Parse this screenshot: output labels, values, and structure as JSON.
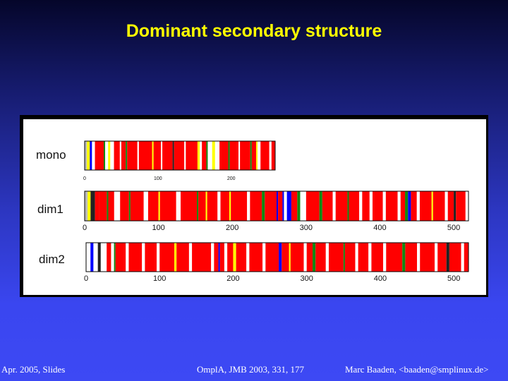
{
  "slide": {
    "title": "Dominant secondary structure",
    "footer_left": "Apr. 2005, Slides",
    "footer_center": "OmplA, JMB 2003, 331, 177",
    "footer_right": "Marc Baaden, <baaden@smplinux.de>"
  },
  "colors": {
    "helix": "#ff0000",
    "strand_yellow": "#ffff00",
    "turn_green": "#118811",
    "blue": "#0000ff",
    "coil": "#ffffff",
    "gray": "#bbbbbb",
    "dark": "#222222"
  },
  "chart_data": [
    {
      "type": "band",
      "name": "mono",
      "label": "mono",
      "axis_range": [
        0,
        260
      ],
      "ticks": [
        0,
        100,
        200
      ],
      "segments": [
        [
          0,
          3,
          "gray"
        ],
        [
          3,
          7,
          "yellow"
        ],
        [
          7,
          10,
          "blue"
        ],
        [
          10,
          14,
          "coil"
        ],
        [
          14,
          26,
          "red"
        ],
        [
          26,
          28,
          "green"
        ],
        [
          28,
          32,
          "coil"
        ],
        [
          32,
          35,
          "yellow"
        ],
        [
          35,
          40,
          "coil"
        ],
        [
          40,
          48,
          "red"
        ],
        [
          48,
          50,
          "coil"
        ],
        [
          50,
          56,
          "red"
        ],
        [
          56,
          58,
          "green"
        ],
        [
          58,
          72,
          "red"
        ],
        [
          72,
          74,
          "coil"
        ],
        [
          74,
          92,
          "red"
        ],
        [
          92,
          94,
          "yellow"
        ],
        [
          94,
          104,
          "red"
        ],
        [
          104,
          106,
          "coil"
        ],
        [
          106,
          120,
          "red"
        ],
        [
          120,
          122,
          "dark"
        ],
        [
          122,
          136,
          "red"
        ],
        [
          136,
          138,
          "coil"
        ],
        [
          138,
          154,
          "red"
        ],
        [
          154,
          157,
          "yellow"
        ],
        [
          157,
          160,
          "coil"
        ],
        [
          160,
          166,
          "red"
        ],
        [
          166,
          168,
          "green"
        ],
        [
          168,
          174,
          "coil"
        ],
        [
          174,
          178,
          "yellow"
        ],
        [
          178,
          184,
          "coil"
        ],
        [
          184,
          196,
          "red"
        ],
        [
          196,
          198,
          "green"
        ],
        [
          198,
          210,
          "red"
        ],
        [
          210,
          212,
          "coil"
        ],
        [
          212,
          226,
          "red"
        ],
        [
          226,
          228,
          "green"
        ],
        [
          228,
          234,
          "red"
        ],
        [
          234,
          236,
          "yellow"
        ],
        [
          236,
          240,
          "coil"
        ],
        [
          240,
          252,
          "red"
        ],
        [
          252,
          255,
          "coil"
        ],
        [
          255,
          260,
          "red"
        ]
      ]
    },
    {
      "type": "band",
      "name": "dim1",
      "label": "dim1",
      "axis_range": [
        0,
        520
      ],
      "ticks": [
        0,
        100,
        200,
        300,
        400,
        500
      ],
      "segments": [
        [
          0,
          4,
          "gray"
        ],
        [
          4,
          8,
          "yellow"
        ],
        [
          8,
          14,
          "dark"
        ],
        [
          14,
          20,
          "red"
        ],
        [
          20,
          30,
          "red"
        ],
        [
          30,
          32,
          "green"
        ],
        [
          32,
          40,
          "red"
        ],
        [
          40,
          48,
          "coil"
        ],
        [
          48,
          60,
          "red"
        ],
        [
          60,
          62,
          "green"
        ],
        [
          62,
          80,
          "red"
        ],
        [
          80,
          86,
          "coil"
        ],
        [
          86,
          100,
          "red"
        ],
        [
          100,
          102,
          "yellow"
        ],
        [
          102,
          124,
          "red"
        ],
        [
          124,
          130,
          "coil"
        ],
        [
          130,
          152,
          "red"
        ],
        [
          152,
          154,
          "green"
        ],
        [
          154,
          164,
          "red"
        ],
        [
          164,
          166,
          "yellow"
        ],
        [
          166,
          180,
          "red"
        ],
        [
          180,
          184,
          "coil"
        ],
        [
          184,
          196,
          "red"
        ],
        [
          196,
          198,
          "yellow"
        ],
        [
          198,
          220,
          "red"
        ],
        [
          220,
          224,
          "coil"
        ],
        [
          224,
          240,
          "red"
        ],
        [
          240,
          244,
          "green"
        ],
        [
          244,
          260,
          "red"
        ],
        [
          260,
          262,
          "blue"
        ],
        [
          262,
          268,
          "red"
        ],
        [
          268,
          270,
          "blue"
        ],
        [
          270,
          274,
          "coil"
        ],
        [
          274,
          280,
          "blue"
        ],
        [
          280,
          288,
          "red"
        ],
        [
          288,
          292,
          "green"
        ],
        [
          292,
          300,
          "coil"
        ],
        [
          300,
          318,
          "red"
        ],
        [
          318,
          322,
          "green"
        ],
        [
          322,
          336,
          "red"
        ],
        [
          336,
          340,
          "coil"
        ],
        [
          340,
          356,
          "red"
        ],
        [
          356,
          358,
          "green"
        ],
        [
          358,
          372,
          "red"
        ],
        [
          372,
          376,
          "coil"
        ],
        [
          376,
          386,
          "red"
        ],
        [
          386,
          390,
          "coil"
        ],
        [
          390,
          404,
          "red"
        ],
        [
          404,
          408,
          "coil"
        ],
        [
          408,
          424,
          "red"
        ],
        [
          424,
          428,
          "coil"
        ],
        [
          428,
          434,
          "red"
        ],
        [
          434,
          438,
          "green"
        ],
        [
          438,
          442,
          "blue"
        ],
        [
          442,
          450,
          "red"
        ],
        [
          450,
          454,
          "coil"
        ],
        [
          454,
          470,
          "red"
        ],
        [
          470,
          472,
          "yellow"
        ],
        [
          472,
          488,
          "red"
        ],
        [
          488,
          492,
          "coil"
        ],
        [
          492,
          500,
          "red"
        ],
        [
          500,
          503,
          "dark"
        ],
        [
          503,
          516,
          "red"
        ],
        [
          516,
          520,
          "coil"
        ]
      ]
    },
    {
      "type": "band",
      "name": "dim2",
      "label": "dim2",
      "axis_range": [
        0,
        520
      ],
      "ticks": [
        0,
        100,
        200,
        300,
        400,
        500
      ],
      "segments": [
        [
          0,
          6,
          "coil"
        ],
        [
          6,
          10,
          "blue"
        ],
        [
          10,
          16,
          "coil"
        ],
        [
          16,
          20,
          "dark"
        ],
        [
          20,
          28,
          "coil"
        ],
        [
          28,
          34,
          "red"
        ],
        [
          34,
          38,
          "coil"
        ],
        [
          38,
          40,
          "green"
        ],
        [
          40,
          54,
          "red"
        ],
        [
          54,
          58,
          "coil"
        ],
        [
          58,
          76,
          "red"
        ],
        [
          76,
          80,
          "coil"
        ],
        [
          80,
          96,
          "red"
        ],
        [
          96,
          100,
          "coil"
        ],
        [
          100,
          120,
          "red"
        ],
        [
          120,
          123,
          "yellow"
        ],
        [
          123,
          140,
          "red"
        ],
        [
          140,
          144,
          "coil"
        ],
        [
          144,
          170,
          "red"
        ],
        [
          170,
          174,
          "coil"
        ],
        [
          174,
          180,
          "red"
        ],
        [
          180,
          182,
          "blue"
        ],
        [
          182,
          188,
          "red"
        ],
        [
          188,
          192,
          "coil"
        ],
        [
          192,
          200,
          "red"
        ],
        [
          200,
          204,
          "yellow"
        ],
        [
          204,
          218,
          "red"
        ],
        [
          218,
          222,
          "coil"
        ],
        [
          222,
          240,
          "red"
        ],
        [
          240,
          244,
          "coil"
        ],
        [
          244,
          262,
          "red"
        ],
        [
          262,
          266,
          "blue"
        ],
        [
          266,
          276,
          "red"
        ],
        [
          276,
          278,
          "yellow"
        ],
        [
          278,
          296,
          "red"
        ],
        [
          296,
          300,
          "coil"
        ],
        [
          300,
          308,
          "red"
        ],
        [
          308,
          312,
          "green"
        ],
        [
          312,
          326,
          "red"
        ],
        [
          326,
          330,
          "coil"
        ],
        [
          330,
          350,
          "red"
        ],
        [
          350,
          352,
          "green"
        ],
        [
          352,
          366,
          "red"
        ],
        [
          366,
          370,
          "coil"
        ],
        [
          370,
          384,
          "red"
        ],
        [
          384,
          388,
          "coil"
        ],
        [
          388,
          404,
          "red"
        ],
        [
          404,
          408,
          "coil"
        ],
        [
          408,
          430,
          "red"
        ],
        [
          430,
          434,
          "green"
        ],
        [
          434,
          450,
          "red"
        ],
        [
          450,
          454,
          "coil"
        ],
        [
          454,
          474,
          "red"
        ],
        [
          474,
          478,
          "coil"
        ],
        [
          478,
          490,
          "red"
        ],
        [
          490,
          494,
          "dark"
        ],
        [
          494,
          510,
          "red"
        ],
        [
          510,
          514,
          "coil"
        ],
        [
          514,
          520,
          "red"
        ]
      ]
    }
  ]
}
